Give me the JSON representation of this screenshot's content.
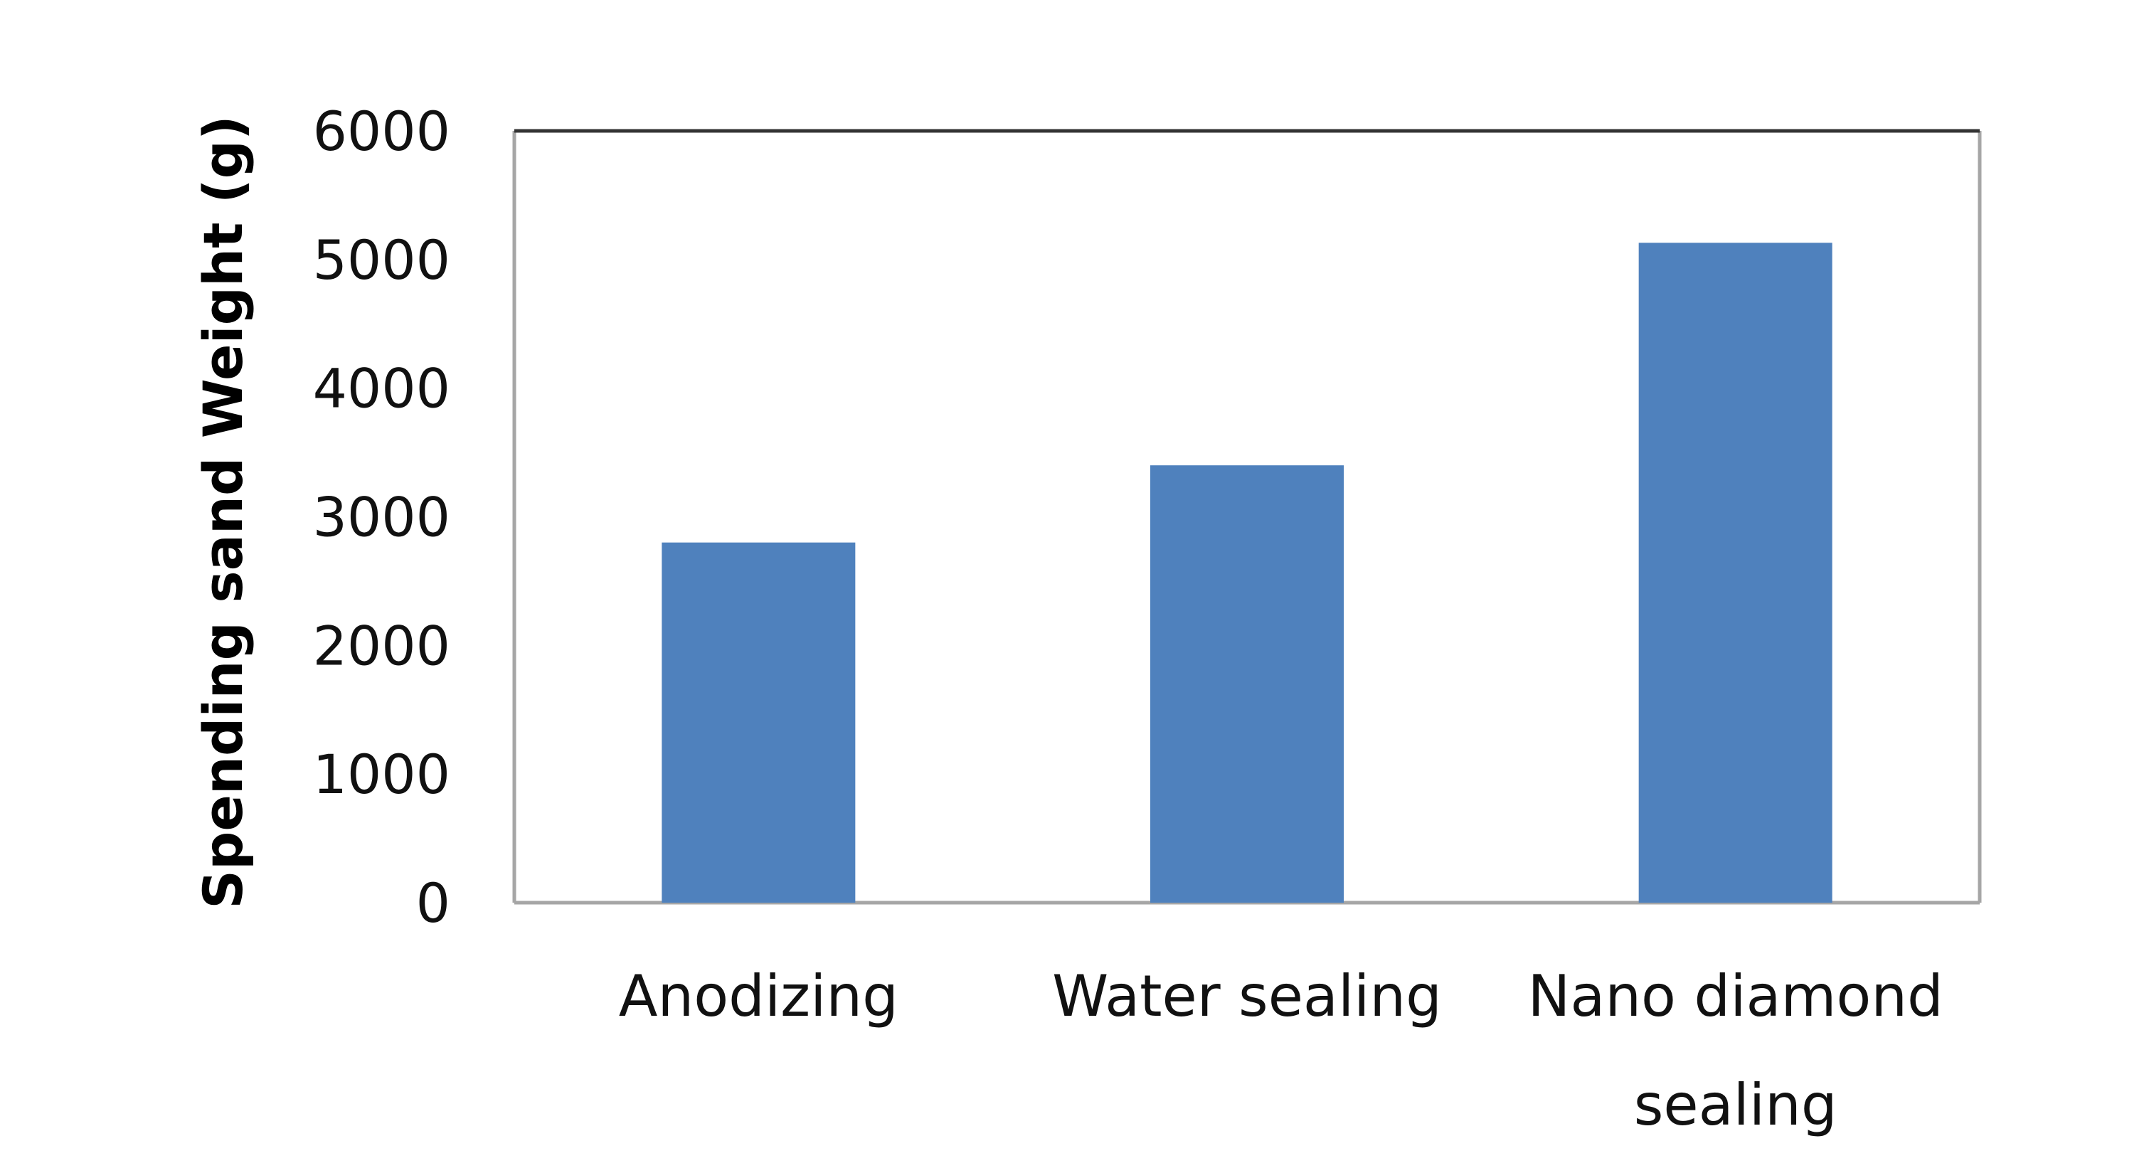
{
  "chart_data": {
    "type": "bar",
    "title": "",
    "xlabel": "",
    "ylabel": "Spending sand Weight (g)",
    "categories": [
      [
        "Anodizing"
      ],
      [
        "Water sealing"
      ],
      [
        "Nano diamond",
        "sealing"
      ]
    ],
    "values": [
      2800,
      3400,
      5130
    ],
    "ylim": [
      0,
      6000
    ],
    "yticks": [
      "0",
      "1000",
      "2000",
      "3000",
      "4000",
      "5000",
      "6000"
    ],
    "ytick_values": [
      0,
      1000,
      2000,
      3000,
      4000,
      5000,
      6000
    ],
    "grid": false,
    "legend": "none",
    "colors": {
      "bar": "#4F81BD",
      "frame": "#A6A6A6",
      "frame_top": "#333333",
      "text": "#111111"
    }
  }
}
